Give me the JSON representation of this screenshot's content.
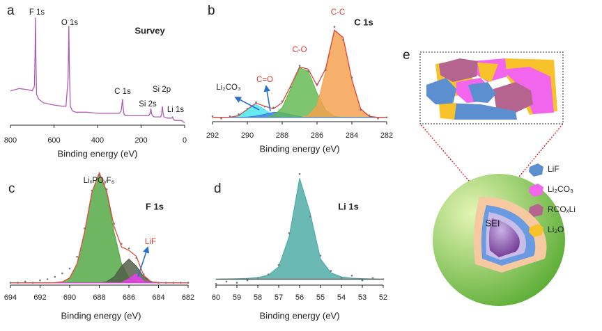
{
  "chart_data": [
    {
      "type": "line",
      "panel": "a",
      "title": "Survey",
      "x_label": "Binding energy (eV)",
      "annotations": [
        "F 1s",
        "O 1s",
        "C 1s",
        "Si 2s",
        "Si 2p",
        "Li 1s"
      ],
      "xlim": [
        800,
        0
      ],
      "xticks": [
        800,
        600,
        400,
        200,
        0
      ],
      "ylim": [
        0,
        100
      ],
      "x": [
        800,
        760,
        720,
        700,
        690,
        687,
        685,
        683,
        680,
        670,
        650,
        600,
        560,
        545,
        535,
        532,
        529,
        525,
        515,
        500,
        450,
        400,
        350,
        300,
        292,
        288,
        285,
        282,
        278,
        270,
        250,
        220,
        200,
        180,
        165,
        158,
        155,
        152,
        148,
        140,
        125,
        115,
        110,
        106,
        102,
        100,
        95,
        80,
        65,
        58,
        55,
        52,
        45,
        30,
        15,
        0
      ],
      "series": [
        {
          "color": "#b05cb5",
          "values": [
            29,
            31,
            30,
            29,
            33,
            60,
            91,
            55,
            26,
            22,
            19,
            17,
            16,
            16,
            40,
            84,
            45,
            16,
            12,
            11,
            11,
            10,
            10,
            10,
            12,
            17,
            22,
            14,
            9,
            8,
            8,
            8,
            8,
            8,
            8,
            10,
            14,
            10,
            8,
            7,
            7,
            7,
            7,
            9,
            16,
            11,
            7,
            6,
            6,
            6,
            7,
            5,
            4,
            4,
            4,
            2
          ]
        }
      ]
    },
    {
      "type": "area",
      "panel": "b",
      "title": "C 1s",
      "x_label": "Binding energy (eV)",
      "annotations": [
        "C-C",
        "C-O",
        "C=O",
        "Li₂CO₃"
      ],
      "xlim": [
        292,
        282
      ],
      "xticks": [
        292,
        290,
        288,
        286,
        284,
        282
      ],
      "ylim": [
        0,
        100
      ],
      "x": [
        292,
        291.5,
        291,
        290.5,
        290,
        289.5,
        289,
        288.5,
        288,
        287.5,
        287,
        286.5,
        286,
        285.5,
        285,
        284.5,
        284,
        283.5,
        283,
        282.5,
        282
      ],
      "series": [
        {
          "style": "area",
          "color": "#44e6ee",
          "values": [
            4,
            4,
            4.1,
            5.6,
            11.3,
            16,
            11.3,
            5.6,
            4.1,
            4,
            4,
            4,
            4,
            4,
            4,
            4,
            4,
            4,
            4,
            4,
            4
          ]
        },
        {
          "style": "area",
          "color": "#3d7fe0",
          "values": [
            4,
            4,
            4,
            4,
            4.3,
            5.2,
            7,
            8.8,
            8.6,
            6.6,
            4.9,
            4.2,
            4,
            4,
            4,
            4,
            4,
            4,
            4,
            4,
            4
          ]
        },
        {
          "style": "area",
          "color": "#62b84f",
          "values": [
            4,
            4,
            4,
            4,
            4,
            4,
            4,
            5.6,
            13,
            31,
            50,
            47,
            26.5,
            10.5,
            5,
            4,
            4,
            4,
            4,
            4,
            4
          ]
        },
        {
          "style": "area",
          "color": "#f6a04d",
          "values": [
            4,
            4,
            4,
            4,
            4,
            4,
            4,
            4,
            4,
            4,
            4,
            5.5,
            15,
            47,
            84,
            78,
            39,
            12,
            5,
            4,
            4
          ]
        },
        {
          "style": "baseline",
          "color": "#2f7fd0",
          "values": [
            4,
            4,
            4,
            4,
            4,
            4,
            4,
            4,
            4,
            4,
            4,
            4,
            4,
            4,
            4,
            4,
            4,
            4,
            4,
            4,
            4
          ]
        },
        {
          "style": "line",
          "color": "#e0413a",
          "values": [
            4,
            4,
            4.1,
            5.6,
            11.6,
            17.2,
            14.3,
            12,
            17.7,
            33.6,
            50.9,
            48.7,
            33.5,
            49.5,
            85,
            78,
            39,
            12,
            5,
            4,
            4
          ]
        },
        {
          "style": "dots",
          "color": "#777777",
          "values": [
            5,
            3,
            5,
            7,
            12,
            18,
            14,
            13,
            19,
            32,
            52,
            47,
            35,
            48,
            88,
            76,
            41,
            11,
            6,
            3,
            4
          ]
        }
      ]
    },
    {
      "type": "area",
      "panel": "c",
      "title": "F 1s",
      "x_label": "Binding energy (eV)",
      "annotations": [
        "LiₓPOᵧF₆",
        "LiF"
      ],
      "xlim": [
        694,
        682
      ],
      "xticks": [
        694,
        692,
        690,
        688,
        686,
        684,
        682
      ],
      "ylim": [
        0,
        100
      ],
      "x": [
        694,
        693.5,
        693,
        692.5,
        692,
        691.5,
        691,
        690.5,
        690,
        689.5,
        689,
        688.5,
        688,
        687.5,
        687,
        686.5,
        686,
        685.5,
        685,
        684.5,
        684,
        683.5,
        683,
        682.5,
        682
      ],
      "series": [
        {
          "style": "area",
          "color": "#4ea640",
          "values": [
            2,
            2,
            2,
            2,
            2,
            2,
            2.1,
            2.7,
            6.1,
            18.1,
            44.6,
            78.5,
            95,
            78.5,
            44.6,
            18.1,
            6.1,
            2.7,
            2.1,
            2,
            2,
            2,
            2,
            2,
            2
          ]
        },
        {
          "style": "area",
          "color": "#4f5a45",
          "values": [
            2,
            2,
            2,
            2,
            2,
            2,
            2,
            2,
            2,
            2,
            2,
            2,
            2,
            2.9,
            7,
            16.1,
            22,
            16.1,
            7,
            2.9,
            2.1,
            2,
            2,
            2,
            2
          ]
        },
        {
          "style": "area",
          "color": "#f03cf0",
          "values": [
            2,
            2,
            2,
            2,
            2,
            2,
            2,
            2,
            2,
            2,
            2,
            2,
            2,
            2,
            2,
            2.1,
            5.3,
            9.6,
            3.1,
            2,
            2,
            2,
            2,
            2,
            2
          ]
        },
        {
          "style": "baseline",
          "color": "#e040e0",
          "values": [
            2,
            2,
            2,
            2,
            2,
            2,
            2,
            2,
            2,
            2,
            2,
            2,
            2,
            2,
            2,
            2,
            2,
            2,
            2,
            2,
            2,
            2,
            2,
            2,
            2
          ]
        },
        {
          "style": "line",
          "color": "#e54b3c",
          "values": [
            2,
            2,
            2,
            2,
            2,
            2,
            2.1,
            2.7,
            6.1,
            18.1,
            44.6,
            78.5,
            95,
            79.4,
            49.6,
            32.3,
            29.4,
            24.4,
            8.2,
            2.9,
            2.1,
            2,
            2,
            2,
            2
          ]
        },
        {
          "style": "dots",
          "color": "#777777",
          "values": [
            2,
            2,
            3,
            2,
            4,
            5,
            7,
            10,
            14,
            24,
            48,
            80,
            93,
            81,
            52,
            35,
            31,
            23,
            9,
            3,
            2,
            2,
            2,
            2,
            2
          ]
        }
      ]
    },
    {
      "type": "area",
      "panel": "d",
      "title": "Li 1s",
      "x_label": "Binding energy (eV)",
      "annotations": [],
      "xlim": [
        60,
        52
      ],
      "xticks": [
        60,
        59,
        58,
        57,
        56,
        55,
        54,
        53,
        52
      ],
      "ylim": [
        0,
        100
      ],
      "x": [
        60,
        59.5,
        59,
        58.5,
        58,
        57.5,
        57,
        56.5,
        56,
        55.5,
        55,
        54.5,
        54,
        53.5,
        53,
        52.5,
        52
      ],
      "series": [
        {
          "style": "area",
          "color": "#4aa9a4",
          "values": [
            5.2,
            5.3,
            5.4,
            5.7,
            6.4,
            8.5,
            15.6,
            41.1,
            90.4,
            61.3,
            22.1,
            10.4,
            7,
            5.9,
            5.5,
            5.3,
            5.2
          ]
        },
        {
          "style": "baseline",
          "color": "#444444",
          "values": [
            5,
            5,
            5,
            5,
            5,
            5,
            5,
            5,
            5,
            5,
            5,
            5,
            5,
            5,
            5,
            5,
            5
          ]
        },
        {
          "style": "dots",
          "color": "#777777",
          "values": [
            1,
            3,
            2,
            4,
            6,
            9,
            17,
            44,
            94,
            58,
            25,
            12,
            6,
            8,
            4,
            6,
            5
          ]
        }
      ]
    }
  ],
  "diagram": {
    "panel": "e",
    "core_label": "SEI",
    "legend": [
      {
        "text": "LiF",
        "color": "#5b8fd0"
      },
      {
        "text": "Li₂CO₃",
        "color": "#f266ee"
      },
      {
        "text": "RCOₓLi",
        "color": "#b5648f"
      },
      {
        "text": "Li₂O",
        "color": "#f8c22a"
      }
    ]
  }
}
